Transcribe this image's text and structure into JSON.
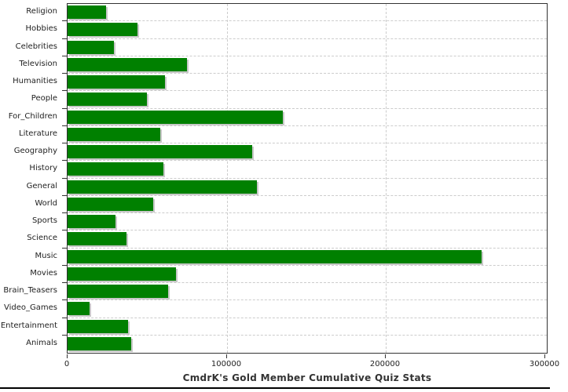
{
  "chart_data": {
    "type": "bar",
    "orientation": "horizontal",
    "title": "CmdrK's Gold Member Cumulative Quiz Stats",
    "categories": [
      "Religion",
      "Hobbies",
      "Celebrities",
      "Television",
      "Humanities",
      "People",
      "For_Children",
      "Literature",
      "Geography",
      "History",
      "General",
      "World",
      "Sports",
      "Science",
      "Music",
      "Movies",
      "Brain_Teasers",
      "Video_Games",
      "Entertainment",
      "Animals"
    ],
    "values": [
      24000,
      44000,
      29000,
      75000,
      61000,
      50000,
      135000,
      58000,
      116000,
      60000,
      119000,
      54000,
      30000,
      37000,
      260000,
      68000,
      63000,
      14000,
      38000,
      40000
    ],
    "x_ticks": [
      0,
      100000,
      200000,
      300000
    ],
    "x_tick_labels": [
      "0",
      "100000",
      "200000",
      "300000"
    ],
    "xlim": [
      0,
      300000
    ],
    "grid": true,
    "legend": "none",
    "bar_color": "#008000",
    "bar_shadow_color": "#c8c8c8",
    "grid_color": "#cccccc",
    "frame_color": "#333333",
    "text_color": "#222222"
  }
}
